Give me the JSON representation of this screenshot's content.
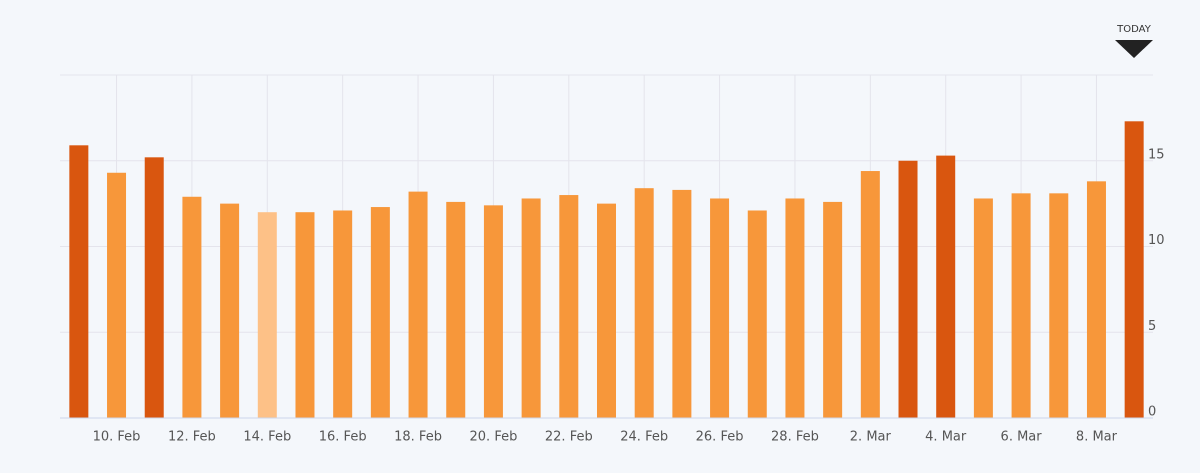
{
  "chart_data": {
    "type": "bar",
    "annotation": "TODAY",
    "categories": [
      null,
      "10. Feb",
      null,
      "12. Feb",
      null,
      "14. Feb",
      null,
      "16. Feb",
      null,
      "18. Feb",
      null,
      "20. Feb",
      null,
      "22. Feb",
      null,
      "24. Feb",
      null,
      "26. Feb",
      null,
      "28. Feb",
      null,
      "2. Mar",
      null,
      "4. Mar",
      null,
      "6. Mar",
      null,
      "8. Mar",
      null
    ],
    "values": [
      15.9,
      14.3,
      15.2,
      12.9,
      12.5,
      12.0,
      12.0,
      12.1,
      12.3,
      13.2,
      12.6,
      12.4,
      12.8,
      13.0,
      12.5,
      13.4,
      13.3,
      12.8,
      12.1,
      12.8,
      12.6,
      14.4,
      15.0,
      15.3,
      12.8,
      13.1,
      13.1,
      13.8,
      17.3
    ],
    "colors": [
      "#d9560f",
      "#f7973a",
      "#d9560f",
      "#f7973a",
      "#f7973a",
      "#fdc187",
      "#f7973a",
      "#f7973a",
      "#f7973a",
      "#f7973a",
      "#f7973a",
      "#f7973a",
      "#f7973a",
      "#f7973a",
      "#f7973a",
      "#f7973a",
      "#f7973a",
      "#f7973a",
      "#f7973a",
      "#f7973a",
      "#f7973a",
      "#f7973a",
      "#d9560f",
      "#d9560f",
      "#f7973a",
      "#f7973a",
      "#f7973a",
      "#f7973a",
      "#d9560f"
    ],
    "ylim": [
      0,
      20
    ],
    "yticks": [
      0,
      5,
      10,
      15
    ],
    "grid": true
  }
}
